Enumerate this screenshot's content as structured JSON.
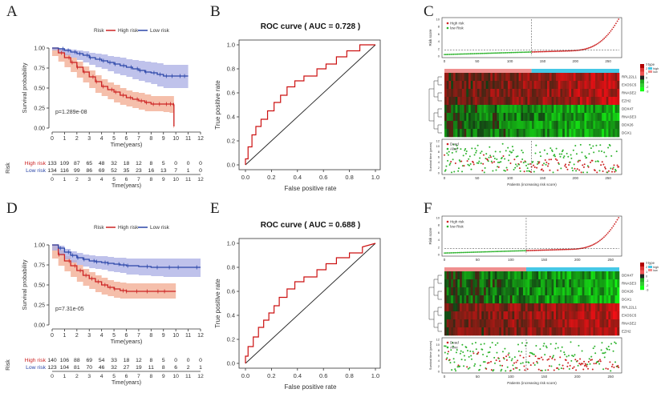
{
  "figure": {
    "panel_letters": [
      "A",
      "B",
      "C",
      "D",
      "E",
      "F"
    ]
  },
  "chart_data": [
    {
      "panel": "A",
      "type": "line",
      "subtype": "kaplan-meier",
      "legend_title": "Risk",
      "legend": [
        "High risk",
        "Low risk"
      ],
      "xlabel": "Time(years)",
      "ylabel": "Survival probability",
      "xlim": [
        0,
        12
      ],
      "ylim": [
        0,
        1
      ],
      "xticks": [
        0,
        1,
        2,
        3,
        4,
        5,
        6,
        7,
        8,
        9,
        10,
        11,
        12
      ],
      "yticks": [
        "0.00",
        "0.25",
        "0.50",
        "0.75",
        "1.00"
      ],
      "pvalue": "p=1.289e-08",
      "colors": {
        "high": "#cc2222",
        "low": "#2a46a8"
      },
      "series": [
        {
          "name": "High risk",
          "x": [
            0,
            0.5,
            1,
            1.5,
            2,
            2.5,
            3,
            3.5,
            4,
            4.5,
            5,
            5.5,
            6,
            6.5,
            7,
            7.5,
            8,
            8.5,
            9,
            9.5,
            9.8,
            9.85
          ],
          "y": [
            1.0,
            0.94,
            0.88,
            0.82,
            0.76,
            0.7,
            0.64,
            0.58,
            0.52,
            0.48,
            0.45,
            0.41,
            0.38,
            0.36,
            0.34,
            0.32,
            0.3,
            0.3,
            0.3,
            0.3,
            0.29,
            0.02
          ],
          "lower": [
            1.0,
            0.9,
            0.83,
            0.76,
            0.7,
            0.63,
            0.57,
            0.5,
            0.44,
            0.4,
            0.36,
            0.32,
            0.29,
            0.27,
            0.25,
            0.23,
            0.21,
            0.21,
            0.21,
            0.2,
            0.19,
            0.0
          ],
          "upper": [
            1.0,
            0.98,
            0.93,
            0.88,
            0.83,
            0.77,
            0.72,
            0.66,
            0.61,
            0.57,
            0.54,
            0.5,
            0.47,
            0.45,
            0.44,
            0.42,
            0.4,
            0.4,
            0.4,
            0.4,
            0.4,
            0.1
          ]
        },
        {
          "name": "Low risk",
          "x": [
            0,
            0.5,
            1,
            1.5,
            2,
            2.5,
            3,
            3.5,
            4,
            4.5,
            5,
            5.5,
            6,
            6.5,
            7,
            7.5,
            8,
            8.5,
            9,
            9.5,
            10,
            10.5,
            11
          ],
          "y": [
            1.0,
            0.99,
            0.97,
            0.95,
            0.93,
            0.91,
            0.88,
            0.86,
            0.84,
            0.82,
            0.8,
            0.78,
            0.76,
            0.74,
            0.72,
            0.7,
            0.69,
            0.67,
            0.65,
            0.65,
            0.65,
            0.65,
            0.65
          ],
          "lower": [
            1.0,
            0.97,
            0.94,
            0.91,
            0.88,
            0.85,
            0.82,
            0.79,
            0.76,
            0.74,
            0.71,
            0.68,
            0.66,
            0.64,
            0.61,
            0.59,
            0.57,
            0.55,
            0.52,
            0.5,
            0.5,
            0.5,
            0.5
          ],
          "upper": [
            1.0,
            1.0,
            0.99,
            0.98,
            0.97,
            0.96,
            0.94,
            0.93,
            0.92,
            0.9,
            0.89,
            0.88,
            0.86,
            0.85,
            0.84,
            0.83,
            0.82,
            0.81,
            0.79,
            0.79,
            0.79,
            0.79,
            0.79
          ]
        }
      ],
      "risk_table": {
        "title": "Risk",
        "xlabel": "Time(years)",
        "rows": [
          {
            "label": "High risk",
            "values": [
              133,
              109,
              87,
              65,
              48,
              32,
              18,
              12,
              8,
              5,
              0,
              0,
              0
            ]
          },
          {
            "label": "Low risk",
            "values": [
              134,
              116,
              99,
              86,
              69,
              52,
              35,
              23,
              16,
              13,
              7,
              1,
              0
            ]
          }
        ]
      }
    },
    {
      "panel": "B",
      "type": "line",
      "subtype": "roc",
      "title": "ROC curve ( AUC =  0.728 )",
      "xlabel": "False positive rate",
      "ylabel": "True positive rate",
      "xlim": [
        0,
        1
      ],
      "ylim": [
        0,
        1
      ],
      "xticks": [
        "0.0",
        "0.2",
        "0.4",
        "0.6",
        "0.8",
        "1.0"
      ],
      "yticks": [
        "0.0",
        "0.2",
        "0.4",
        "0.6",
        "0.8",
        "1.0"
      ],
      "x": [
        0,
        0.0,
        0.02,
        0.02,
        0.05,
        0.05,
        0.08,
        0.08,
        0.12,
        0.12,
        0.17,
        0.17,
        0.22,
        0.22,
        0.27,
        0.27,
        0.32,
        0.32,
        0.38,
        0.38,
        0.45,
        0.45,
        0.55,
        0.55,
        0.62,
        0.62,
        0.7,
        0.7,
        0.78,
        0.78,
        0.88,
        0.88,
        1.0
      ],
      "y": [
        0,
        0.05,
        0.05,
        0.15,
        0.15,
        0.25,
        0.25,
        0.32,
        0.32,
        0.38,
        0.38,
        0.45,
        0.45,
        0.52,
        0.52,
        0.58,
        0.58,
        0.65,
        0.65,
        0.7,
        0.7,
        0.74,
        0.74,
        0.8,
        0.8,
        0.84,
        0.84,
        0.9,
        0.9,
        0.95,
        0.95,
        1.0,
        1.0
      ]
    },
    {
      "panel": "C",
      "type": "scatter",
      "subtype": "risk-score-panel",
      "risk_score": {
        "ylabel": "Risk score",
        "legend": [
          "High risk",
          "low Risk"
        ],
        "xticks": [
          0,
          50,
          100,
          150,
          200,
          250
        ],
        "yticks": [
          0,
          2,
          4,
          6,
          8,
          10
        ],
        "xlim": [
          0,
          267
        ],
        "ylim": [
          0,
          10
        ],
        "cutoff_index": 133
      },
      "heatmap": {
        "genes": [
          "RPL22L1",
          "EXOSC5",
          "RNASE2",
          "EZH2",
          "DDX47",
          "RNASE3",
          "DDX26",
          "DGX1"
        ],
        "colorbar": [
          "3",
          "2",
          "1",
          "0",
          "-1",
          "-2",
          "-3"
        ],
        "type_legend_title": "type",
        "type_legend": [
          "high",
          "low"
        ]
      },
      "survival": {
        "ylabel": "Survival time (years)",
        "xlabel": "Patients (increasing risk score)",
        "legend": [
          "Dead",
          "Alive"
        ],
        "xticks": [
          0,
          50,
          100,
          150,
          200,
          250
        ],
        "yticks": [
          0,
          2,
          4,
          6,
          8,
          10,
          12
        ],
        "xlim": [
          0,
          267
        ],
        "ylim": [
          0,
          12
        ]
      }
    },
    {
      "panel": "D",
      "type": "line",
      "subtype": "kaplan-meier",
      "legend_title": "Risk",
      "legend": [
        "High risk",
        "Low risk"
      ],
      "xlabel": "Time(years)",
      "ylabel": "Survival probability",
      "xlim": [
        0,
        12
      ],
      "ylim": [
        0,
        1
      ],
      "xticks": [
        0,
        1,
        2,
        3,
        4,
        5,
        6,
        7,
        8,
        9,
        10,
        11,
        12
      ],
      "yticks": [
        "0.00",
        "0.25",
        "0.50",
        "0.75",
        "1.00"
      ],
      "pvalue": "p=7.31e-05",
      "colors": {
        "high": "#cc2222",
        "low": "#2a46a8"
      },
      "series": [
        {
          "name": "High risk",
          "x": [
            0,
            0.5,
            1,
            1.5,
            2,
            2.5,
            3,
            3.5,
            4,
            4.5,
            5,
            5.5,
            6,
            6.5,
            7,
            8,
            9,
            10
          ],
          "y": [
            1.0,
            0.88,
            0.8,
            0.74,
            0.68,
            0.62,
            0.58,
            0.54,
            0.5,
            0.47,
            0.45,
            0.43,
            0.42,
            0.42,
            0.42,
            0.42,
            0.42,
            0.42
          ],
          "lower": [
            1.0,
            0.83,
            0.74,
            0.67,
            0.6,
            0.54,
            0.49,
            0.45,
            0.41,
            0.38,
            0.36,
            0.34,
            0.33,
            0.33,
            0.33,
            0.33,
            0.33,
            0.33
          ],
          "upper": [
            1.0,
            0.93,
            0.86,
            0.81,
            0.75,
            0.7,
            0.66,
            0.62,
            0.59,
            0.56,
            0.54,
            0.53,
            0.52,
            0.52,
            0.52,
            0.52,
            0.52,
            0.52
          ]
        },
        {
          "name": "Low risk",
          "x": [
            0,
            0.5,
            1,
            1.5,
            2,
            2.5,
            3,
            3.5,
            4,
            4.5,
            5,
            5.5,
            6,
            7,
            8,
            9,
            10,
            11,
            12
          ],
          "y": [
            1.0,
            0.96,
            0.91,
            0.87,
            0.84,
            0.82,
            0.8,
            0.79,
            0.78,
            0.77,
            0.76,
            0.75,
            0.74,
            0.73,
            0.72,
            0.72,
            0.72,
            0.72,
            0.72
          ],
          "lower": [
            1.0,
            0.93,
            0.87,
            0.82,
            0.78,
            0.75,
            0.73,
            0.71,
            0.7,
            0.69,
            0.67,
            0.66,
            0.65,
            0.63,
            0.62,
            0.61,
            0.6,
            0.6,
            0.6
          ],
          "upper": [
            1.0,
            0.99,
            0.95,
            0.92,
            0.9,
            0.88,
            0.87,
            0.86,
            0.86,
            0.85,
            0.84,
            0.84,
            0.83,
            0.83,
            0.83,
            0.83,
            0.83,
            0.83,
            0.83
          ]
        }
      ],
      "risk_table": {
        "title": "Risk",
        "xlabel": "Time(years)",
        "rows": [
          {
            "label": "High risk",
            "values": [
              140,
              106,
              88,
              69,
              54,
              33,
              18,
              12,
              8,
              5,
              0,
              0,
              0
            ]
          },
          {
            "label": "Low risk",
            "values": [
              123,
              104,
              81,
              70,
              46,
              32,
              27,
              19,
              11,
              8,
              6,
              2,
              1
            ]
          }
        ]
      }
    },
    {
      "panel": "E",
      "type": "line",
      "subtype": "roc",
      "title": "ROC curve ( AUC =  0.688 )",
      "xlabel": "False positive rate",
      "ylabel": "True positive rate",
      "xlim": [
        0,
        1
      ],
      "ylim": [
        0,
        1
      ],
      "xticks": [
        "0.0",
        "0.2",
        "0.4",
        "0.6",
        "0.8",
        "1.0"
      ],
      "yticks": [
        "0.0",
        "0.2",
        "0.4",
        "0.6",
        "0.8",
        "1.0"
      ],
      "x": [
        0,
        0.0,
        0.02,
        0.02,
        0.06,
        0.06,
        0.1,
        0.1,
        0.14,
        0.14,
        0.18,
        0.18,
        0.22,
        0.22,
        0.26,
        0.26,
        0.32,
        0.32,
        0.38,
        0.38,
        0.45,
        0.45,
        0.55,
        0.55,
        0.62,
        0.62,
        0.7,
        0.7,
        0.8,
        0.8,
        0.9,
        0.9,
        1.0
      ],
      "y": [
        0,
        0.06,
        0.06,
        0.14,
        0.14,
        0.22,
        0.22,
        0.3,
        0.3,
        0.36,
        0.36,
        0.42,
        0.42,
        0.48,
        0.48,
        0.55,
        0.55,
        0.62,
        0.62,
        0.68,
        0.68,
        0.72,
        0.72,
        0.78,
        0.78,
        0.83,
        0.83,
        0.88,
        0.88,
        0.92,
        0.92,
        0.97,
        1.0
      ]
    },
    {
      "panel": "F",
      "type": "scatter",
      "subtype": "risk-score-panel",
      "risk_score": {
        "ylabel": "Risk score",
        "legend": [
          "High risk",
          "low Risk"
        ],
        "xticks": [
          0,
          50,
          100,
          150,
          200,
          250
        ],
        "yticks": [
          0,
          2,
          4,
          6,
          8,
          10
        ],
        "xlim": [
          0,
          263
        ],
        "ylim": [
          0,
          10
        ],
        "cutoff_index": 123
      },
      "heatmap": {
        "genes": [
          "DDX47",
          "RNASE3",
          "DDX26",
          "DGX1",
          "RPL22L1",
          "EXOSC5",
          "RNASE2",
          "EZH2"
        ],
        "colorbar": [
          "3",
          "2",
          "1",
          "0",
          "-1",
          "-2",
          "-3"
        ],
        "type_legend_title": "type",
        "type_legend": [
          "high",
          "low"
        ]
      },
      "survival": {
        "ylabel": "Survival time (years)",
        "xlabel": "Patients (increasing risk score)",
        "legend": [
          "Dead",
          "Alive"
        ],
        "xticks": [
          0,
          50,
          100,
          150,
          200,
          250
        ],
        "yticks": [
          0,
          2,
          4,
          6,
          8,
          10,
          12
        ],
        "xlim": [
          0,
          263
        ],
        "ylim": [
          0,
          12
        ]
      }
    }
  ]
}
